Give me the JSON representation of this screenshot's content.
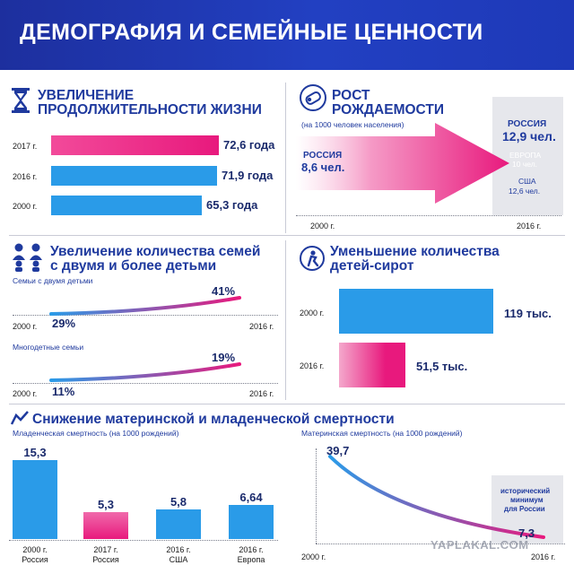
{
  "header": {
    "title": "ДЕМОГРАФИЯ И СЕМЕЙНЫЕ ЦЕННОСТИ"
  },
  "life": {
    "title_line1": "УВЕЛИЧЕНИЕ",
    "title_line2": "ПРОДОЛЖИТЕЛЬНОСТИ ЖИЗНИ",
    "icon": "hourglass-icon",
    "rows": [
      {
        "year": "2017 г.",
        "label": "72,6 года",
        "value": 72.6
      },
      {
        "year": "2016 г.",
        "label": "71,9 года",
        "value": 71.9
      },
      {
        "year": "2000 г.",
        "label": "65,3 года",
        "value": 65.3
      }
    ]
  },
  "birth": {
    "title_line1": "РОСТ",
    "title_line2": "РОЖДАЕМОСТИ",
    "icon": "baby-icon",
    "subtitle": "(на 1000 человек населения)",
    "start_country": "РОССИЯ",
    "start_value": "8,6 чел.",
    "end": [
      {
        "country": "РОССИЯ",
        "value": "12,9 чел."
      },
      {
        "country": "ЕВРОПА",
        "value": "10 чел."
      },
      {
        "country": "США",
        "value": "12,6 чел."
      }
    ],
    "year_start": "2000 г.",
    "year_end": "2016 г."
  },
  "families": {
    "title_line1": "Увеличение количества семей",
    "title_line2": "с двумя и более детьми",
    "icon": "family-icon",
    "rows": [
      {
        "caption": "Семьи с двумя детьми",
        "start": "29%",
        "end": "41%",
        "year_start": "2000 г.",
        "year_end": "2016 г."
      },
      {
        "caption": "Многодетные семьи",
        "start": "11%",
        "end": "19%",
        "year_start": "2000 г.",
        "year_end": "2016 г."
      }
    ]
  },
  "orphans": {
    "title_line1": "Уменьшение количества",
    "title_line2": "детей-сирот",
    "icon": "child-icon",
    "rows": [
      {
        "year": "2000 г.",
        "label": "119 тыс.",
        "value": 119
      },
      {
        "year": "2016 г.",
        "label": "51,5 тыс.",
        "value": 51.5
      }
    ]
  },
  "mortality": {
    "title": "Снижение материнской и младенческой смертности",
    "icon": "chart-icon",
    "infant": {
      "caption": "Младенческая смертность (на 1000 рождений)",
      "bars": [
        {
          "label": "15,3",
          "value": 15.3,
          "year": "2000 г.",
          "country": "Россия"
        },
        {
          "label": "5,3",
          "value": 5.3,
          "year": "2017 г.",
          "country": "Россия"
        },
        {
          "label": "5,8",
          "value": 5.8,
          "year": "2016 г.",
          "country": "США"
        },
        {
          "label": "6,64",
          "value": 6.64,
          "year": "2016 г.",
          "country": "Европа"
        }
      ]
    },
    "maternal": {
      "caption": "Материнская смертность (на 1000 рождений)",
      "start": "39,7",
      "end": "7,3",
      "note_line1": "исторический",
      "note_line2": "минимум",
      "note_line3": "для России",
      "year_start": "2000 г.",
      "year_end": "2016 г."
    }
  },
  "watermark": "YAPLAKAL.COM",
  "colors": {
    "blue": "#2a9be8",
    "pink": "#e8197d",
    "navy": "#1f3a9e",
    "header": "#1d2f9e"
  }
}
